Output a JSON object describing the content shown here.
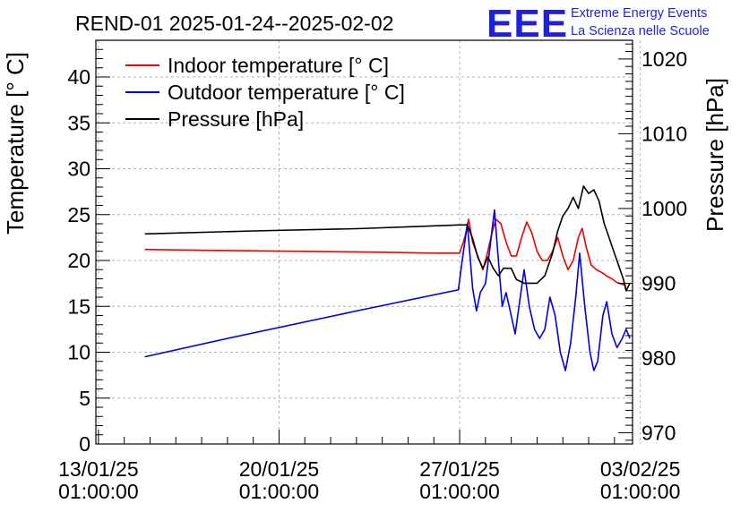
{
  "chart_data": {
    "type": "line",
    "title": "REND-01 2025-01-24--2025-02-02",
    "logo": {
      "text": "EEE",
      "line1": "Extreme Energy Events",
      "line2": "La Scienza nelle Scuole"
    },
    "ylabel": "Temperature [° C]",
    "ylabel_right": "Pressure [hPa]",
    "ylim": [
      0,
      44
    ],
    "ylim_right": [
      968.5,
      1022.5
    ],
    "y_ticks": [
      0,
      5,
      10,
      15,
      20,
      25,
      30,
      35,
      40
    ],
    "y_right_ticks": [
      970,
      980,
      990,
      1000,
      1010,
      1020
    ],
    "x_domain_days": [
      -0.1,
      20.7
    ],
    "x_ticks": [
      {
        "day": 0,
        "date": "13/01/25",
        "time": "01:00:00"
      },
      {
        "day": 7,
        "date": "20/01/25",
        "time": "01:00:00"
      },
      {
        "day": 14,
        "date": "27/01/25",
        "time": "01:00:00"
      },
      {
        "day": 21,
        "date": "03/02/25",
        "time": "01:00:00"
      }
    ],
    "grid": true,
    "legend_position": "top-left",
    "series": [
      {
        "name": "Indoor temperature [° C]",
        "axis": "left",
        "color": "#ee0000",
        "points": [
          [
            1.8,
            21.2
          ],
          [
            4,
            21.1
          ],
          [
            8,
            21.0
          ],
          [
            11,
            20.9
          ],
          [
            13,
            20.8
          ],
          [
            14.0,
            20.8
          ],
          [
            14.2,
            22.5
          ],
          [
            14.35,
            24.5
          ],
          [
            14.5,
            22.0
          ],
          [
            14.7,
            20.5
          ],
          [
            14.9,
            19.0
          ],
          [
            15.05,
            20.5
          ],
          [
            15.25,
            23.0
          ],
          [
            15.4,
            24.5
          ],
          [
            15.6,
            24.0
          ],
          [
            15.8,
            22.0
          ],
          [
            16.0,
            20.5
          ],
          [
            16.2,
            20.5
          ],
          [
            16.4,
            22.5
          ],
          [
            16.6,
            24.2
          ],
          [
            16.8,
            23.0
          ],
          [
            17.0,
            21.0
          ],
          [
            17.2,
            20.0
          ],
          [
            17.4,
            20.0
          ],
          [
            17.6,
            21.0
          ],
          [
            17.8,
            22.5
          ],
          [
            18.0,
            20.5
          ],
          [
            18.2,
            19.0
          ],
          [
            18.4,
            20.0
          ],
          [
            18.6,
            22.5
          ],
          [
            18.75,
            23.5
          ],
          [
            18.9,
            21.5
          ],
          [
            19.1,
            19.5
          ],
          [
            19.3,
            19.0
          ],
          [
            19.5,
            18.7
          ],
          [
            19.7,
            18.3
          ],
          [
            19.9,
            18.0
          ],
          [
            20.1,
            17.6
          ],
          [
            20.3,
            17.4
          ],
          [
            20.45,
            17.3
          ]
        ]
      },
      {
        "name": "Outdoor temperature [° C]",
        "axis": "left",
        "color": "#0000dd",
        "points": [
          [
            1.8,
            9.5
          ],
          [
            5,
            11.5
          ],
          [
            10,
            14.5
          ],
          [
            13.95,
            16.8
          ],
          [
            14.1,
            20.0
          ],
          [
            14.3,
            24.0
          ],
          [
            14.5,
            17.0
          ],
          [
            14.65,
            14.5
          ],
          [
            14.8,
            16.5
          ],
          [
            15.0,
            17.5
          ],
          [
            15.2,
            22.0
          ],
          [
            15.35,
            25.5
          ],
          [
            15.5,
            20.0
          ],
          [
            15.65,
            15.0
          ],
          [
            15.8,
            16.5
          ],
          [
            16.0,
            14.0
          ],
          [
            16.15,
            12.0
          ],
          [
            16.35,
            16.0
          ],
          [
            16.5,
            19.0
          ],
          [
            16.7,
            15.0
          ],
          [
            16.9,
            12.5
          ],
          [
            17.1,
            11.5
          ],
          [
            17.3,
            12.5
          ],
          [
            17.5,
            16.0
          ],
          [
            17.7,
            14.0
          ],
          [
            17.9,
            10.0
          ],
          [
            18.1,
            8.0
          ],
          [
            18.3,
            11.0
          ],
          [
            18.5,
            16.0
          ],
          [
            18.65,
            20.8
          ],
          [
            18.85,
            15.0
          ],
          [
            19.05,
            10.0
          ],
          [
            19.2,
            8.0
          ],
          [
            19.35,
            9.0
          ],
          [
            19.55,
            14.0
          ],
          [
            19.7,
            15.5
          ],
          [
            19.9,
            12.0
          ],
          [
            20.1,
            10.5
          ],
          [
            20.3,
            11.5
          ],
          [
            20.45,
            12.5
          ],
          [
            20.6,
            11.5
          ]
        ]
      },
      {
        "name": "Pressure [hPa]",
        "axis": "right",
        "color": "#000000",
        "points": [
          [
            1.8,
            996.6
          ],
          [
            6,
            997.0
          ],
          [
            10,
            997.3
          ],
          [
            14.0,
            997.8
          ],
          [
            14.3,
            997.8
          ],
          [
            14.5,
            996.0
          ],
          [
            14.7,
            993.5
          ],
          [
            14.9,
            992.0
          ],
          [
            15.1,
            993.5
          ],
          [
            15.3,
            992.0
          ],
          [
            15.5,
            991.0
          ],
          [
            15.7,
            992.0
          ],
          [
            16.0,
            992.0
          ],
          [
            16.2,
            990.5
          ],
          [
            16.5,
            990.0
          ],
          [
            17.0,
            990.0
          ],
          [
            17.3,
            991.0
          ],
          [
            17.6,
            994.0
          ],
          [
            17.8,
            997.0
          ],
          [
            18.0,
            999.0
          ],
          [
            18.2,
            1000.0
          ],
          [
            18.4,
            1001.5
          ],
          [
            18.6,
            1000.0
          ],
          [
            18.8,
            1003.0
          ],
          [
            19.0,
            1002.0
          ],
          [
            19.2,
            1002.5
          ],
          [
            19.4,
            1001.0
          ],
          [
            19.6,
            998.0
          ],
          [
            19.8,
            996.0
          ],
          [
            20.0,
            994.0
          ],
          [
            20.2,
            992.0
          ],
          [
            20.35,
            990.5
          ],
          [
            20.45,
            989.0
          ],
          [
            20.6,
            990.0
          ]
        ]
      }
    ]
  }
}
